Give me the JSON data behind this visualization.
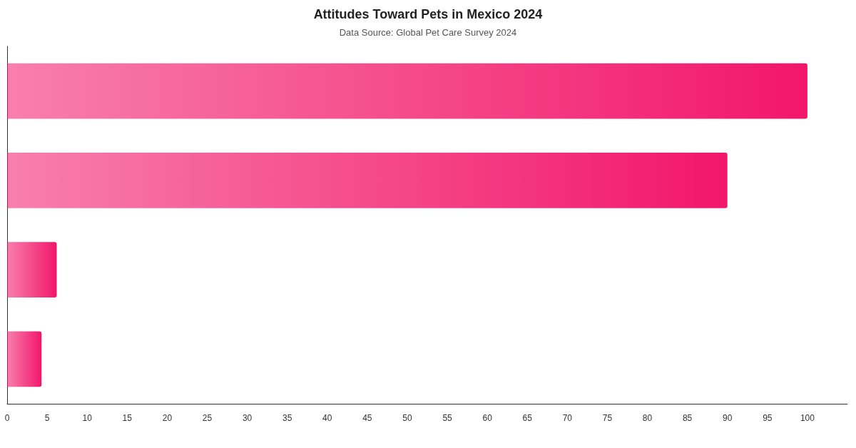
{
  "chart_data": {
    "type": "bar",
    "title": "Attitudes Toward Pets in Mexico 2024",
    "subtitle": "Data Source: Global Pet Care Survey 2024",
    "orientation": "horizontal",
    "categories": [
      null,
      null,
      null,
      null
    ],
    "values": [
      100,
      90,
      6.2,
      4.3
    ],
    "color": "#f2166b",
    "xlim": [
      0,
      105
    ],
    "xticks": [
      0,
      5,
      10,
      15,
      20,
      25,
      30,
      35,
      40,
      45,
      50,
      55,
      60,
      65,
      70,
      75,
      80,
      85,
      90,
      95,
      100
    ],
    "grid": false,
    "tick_labels": "x"
  }
}
